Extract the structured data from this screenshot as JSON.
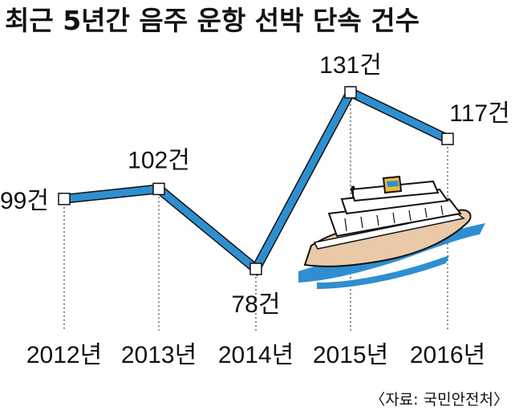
{
  "chart_data": {
    "type": "line",
    "title": "최근 5년간 음주 운항 선박 단속 건수",
    "categories": [
      "2012년",
      "2013년",
      "2014년",
      "2015년",
      "2016년"
    ],
    "series": [
      {
        "values": [
          99,
          102,
          78,
          131,
          117
        ]
      }
    ],
    "data_labels": [
      "99건",
      "102건",
      "78건",
      "131건",
      "117건"
    ],
    "ylim": [
      70,
      140
    ],
    "grid": "vertical-dotted",
    "line_color": "#2e8fd0",
    "source": "〈자료: 국민안전처〉"
  }
}
